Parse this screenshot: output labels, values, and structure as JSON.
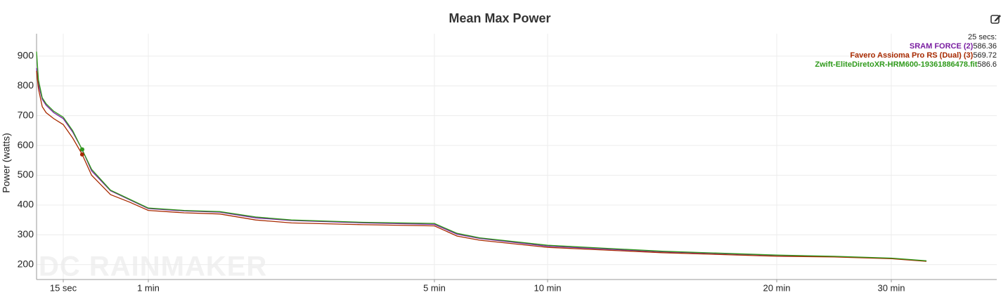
{
  "chart_data": {
    "type": "line",
    "title": "Mean Max Power",
    "y_label": "Power (watts)",
    "watermark": "DC RAINMAKER",
    "x": [
      1,
      2,
      4,
      6,
      10,
      15,
      20,
      25,
      30,
      40,
      50,
      60,
      90,
      120,
      150,
      180,
      240,
      300,
      360,
      420,
      600,
      900,
      1200,
      1500,
      1800,
      2000
    ],
    "series": [
      {
        "name": "SRAM FORCE (2)",
        "color": "#7a1ea1",
        "values": [
          860,
          805,
          755,
          735,
          710,
          690,
          645,
          586,
          515,
          448,
          418,
          388,
          380,
          376,
          357,
          348,
          340,
          335,
          302,
          288,
          262,
          243,
          231,
          227,
          221,
          212
        ]
      },
      {
        "name": "Favero Assioma Pro RS (Dual) (3)",
        "color": "#a82a00",
        "values": [
          850,
          790,
          730,
          710,
          690,
          670,
          625,
          570,
          500,
          435,
          410,
          382,
          374,
          370,
          350,
          340,
          334,
          330,
          296,
          282,
          258,
          240,
          228,
          226,
          220,
          211
        ]
      },
      {
        "name": "Zwift-EliteDiretoXR-HRM600-19361886478.fit",
        "color": "#2f9a1b",
        "values": [
          915,
          820,
          760,
          740,
          715,
          695,
          650,
          586,
          520,
          450,
          420,
          390,
          382,
          378,
          360,
          350,
          342,
          338,
          305,
          290,
          265,
          245,
          232,
          228,
          222,
          213
        ]
      }
    ],
    "readout": {
      "label": "25 secs:",
      "x": 25,
      "values": [
        586.36,
        569.72,
        586.6
      ]
    },
    "xlim": [
      1,
      2400
    ],
    "xticks": [
      {
        "value": 15,
        "label": "15 sec"
      },
      {
        "value": 60,
        "label": "1 min"
      },
      {
        "value": 300,
        "label": "5 min"
      },
      {
        "value": 600,
        "label": "10 min"
      },
      {
        "value": 1200,
        "label": "20 min"
      },
      {
        "value": 1800,
        "label": "30 min"
      }
    ],
    "ylim": [
      150,
      975
    ],
    "yticks": [
      200,
      300,
      400,
      500,
      600,
      700,
      800,
      900
    ],
    "grid": true
  }
}
